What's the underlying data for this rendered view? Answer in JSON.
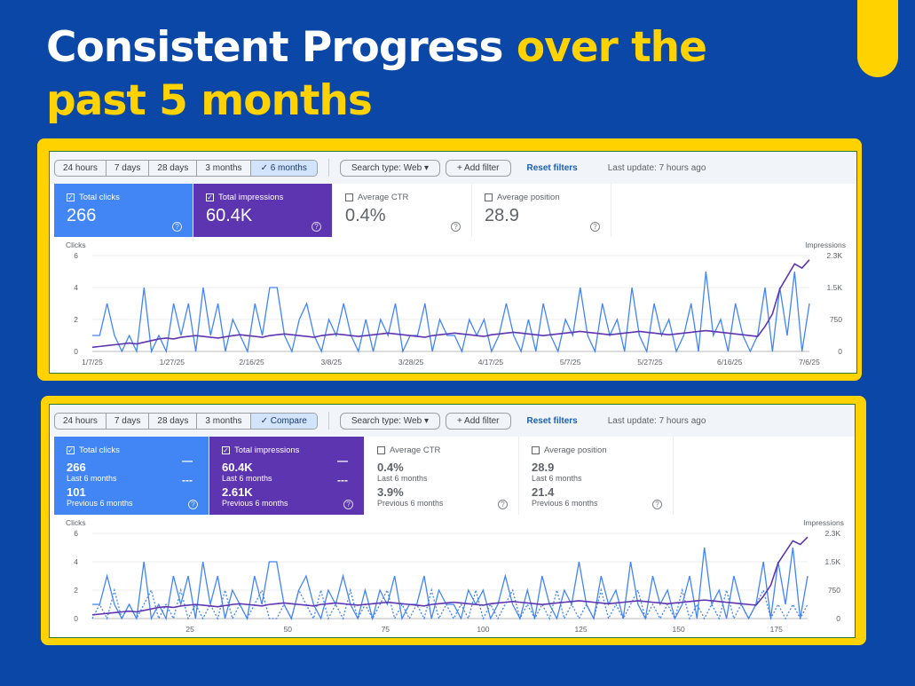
{
  "slide": {
    "title_white": "Consistent Progress ",
    "title_yellow_1": "over the",
    "title_yellow_2": "past 5 months"
  },
  "colors": {
    "background": "#0a47a6",
    "accent": "#ffd200",
    "clicks": "#4285f4",
    "impressions": "#5e35b1"
  },
  "panel1": {
    "ranges": [
      "24 hours",
      "7 days",
      "28 days",
      "3 months",
      "✓ 6 months"
    ],
    "search_type": "Search type: Web ▾",
    "add_filter": "+ Add filter",
    "reset": "Reset filters",
    "last_update": "Last update: 7 hours ago",
    "cards": [
      {
        "label": "Total clicks",
        "value": "266",
        "checked": true
      },
      {
        "label": "Total impressions",
        "value": "60.4K",
        "checked": true
      },
      {
        "label": "Average CTR",
        "value": "0.4%",
        "checked": false
      },
      {
        "label": "Average position",
        "value": "28.9",
        "checked": false
      }
    ]
  },
  "panel2": {
    "ranges": [
      "24 hours",
      "7 days",
      "28 days",
      "3 months",
      "✓ Compare"
    ],
    "search_type": "Search type: Web ▾",
    "add_filter": "+ Add filter",
    "reset": "Reset filters",
    "last_update": "Last update: 7 hours ago",
    "cards": [
      {
        "label": "Total clicks",
        "value": "266",
        "period": "Last 6 months",
        "prev_value": "101",
        "prev_period": "Previous 6 months"
      },
      {
        "label": "Total impressions",
        "value": "60.4K",
        "period": "Last 6 months",
        "prev_value": "2.61K",
        "prev_period": "Previous 6 months"
      },
      {
        "label": "Average CTR",
        "value": "0.4%",
        "period": "Last 6 months",
        "prev_value": "3.9%",
        "prev_period": "Previous 6 months"
      },
      {
        "label": "Average position",
        "value": "28.9",
        "period": "Last 6 months",
        "prev_value": "21.4",
        "prev_period": "Previous 6 months"
      }
    ]
  },
  "chart_data": [
    {
      "type": "line",
      "ylabel": "Clicks",
      "y2label": "Impressions",
      "ylim": [
        0,
        6
      ],
      "y2lim": [
        0,
        2300
      ],
      "yticks": [
        "0",
        "2",
        "4",
        "6"
      ],
      "y2ticks": [
        "0",
        "750",
        "1.5K",
        "2.3K"
      ],
      "xticks": [
        "1/7/25",
        "1/27/25",
        "2/16/25",
        "3/8/25",
        "3/28/25",
        "4/17/25",
        "5/7/25",
        "5/27/25",
        "6/16/25",
        "7/6/25"
      ],
      "series": [
        {
          "name": "Clicks",
          "values": [
            1,
            1,
            3,
            1,
            0,
            1,
            0,
            4,
            0,
            1,
            0,
            3,
            1,
            3,
            0,
            4,
            1,
            3,
            0,
            2,
            1,
            0,
            3,
            1,
            4,
            4,
            1,
            0,
            2,
            3,
            1,
            0,
            2,
            1,
            3,
            1,
            0,
            2,
            0,
            2,
            1,
            3,
            0,
            1,
            1,
            3,
            0,
            2,
            1,
            1,
            0,
            2,
            1,
            2,
            0,
            1,
            3,
            1,
            0,
            2,
            0,
            3,
            1,
            0,
            2,
            1,
            4,
            1,
            0,
            3,
            1,
            2,
            0,
            4,
            1,
            0,
            3,
            1,
            2,
            0,
            1,
            3,
            0,
            5,
            1,
            2,
            0,
            3,
            1,
            0,
            1,
            4,
            0,
            4,
            1,
            5,
            0,
            3
          ]
        },
        {
          "name": "Impressions",
          "values": [
            100,
            120,
            140,
            160,
            180,
            200,
            180,
            220,
            260,
            300,
            320,
            300,
            340,
            360,
            380,
            360,
            340,
            320,
            350,
            380,
            400,
            380,
            360,
            340,
            380,
            400,
            420,
            400,
            380,
            360,
            340,
            380,
            400,
            420,
            400,
            380,
            360,
            380,
            400,
            420,
            440,
            420,
            400,
            380,
            360,
            340,
            380,
            400,
            420,
            440,
            420,
            400,
            380,
            360,
            400,
            420,
            440,
            460,
            440,
            420,
            400,
            380,
            400,
            420,
            440,
            460,
            480,
            460,
            440,
            420,
            400,
            420,
            440,
            460,
            480,
            460,
            440,
            420,
            400,
            420,
            440,
            460,
            480,
            500,
            480,
            460,
            440,
            420,
            400,
            380,
            360,
            600,
            900,
            1500,
            1800,
            2100,
            2000,
            2200
          ]
        }
      ]
    },
    {
      "type": "line",
      "ylabel": "Clicks",
      "y2label": "Impressions",
      "ylim": [
        0,
        6
      ],
      "y2lim": [
        0,
        2300
      ],
      "yticks": [
        "0",
        "2",
        "4",
        "6"
      ],
      "y2ticks": [
        "0",
        "750",
        "1.5K",
        "2.3K"
      ],
      "xticks": [
        "25",
        "50",
        "75",
        "100",
        "125",
        "150",
        "175"
      ],
      "series": [
        {
          "name": "Clicks (last 6 months)",
          "values": [
            1,
            1,
            3,
            1,
            0,
            1,
            0,
            4,
            0,
            1,
            0,
            3,
            1,
            3,
            0,
            4,
            1,
            3,
            0,
            2,
            1,
            0,
            3,
            1,
            4,
            4,
            1,
            0,
            2,
            3,
            1,
            0,
            2,
            1,
            3,
            1,
            0,
            2,
            0,
            2,
            1,
            3,
            0,
            1,
            1,
            3,
            0,
            2,
            1,
            1,
            0,
            2,
            1,
            2,
            0,
            1,
            3,
            1,
            0,
            2,
            0,
            3,
            1,
            0,
            2,
            1,
            4,
            1,
            0,
            3,
            1,
            2,
            0,
            4,
            1,
            0,
            3,
            1,
            2,
            0,
            1,
            3,
            0,
            5,
            1,
            2,
            0,
            3,
            1,
            0,
            1,
            4,
            0,
            4,
            1,
            5,
            0,
            3
          ]
        },
        {
          "name": "Clicks (previous 6 months)",
          "values": [
            0,
            1,
            0,
            2,
            0,
            1,
            0,
            1,
            2,
            0,
            1,
            0,
            2,
            0,
            1,
            0,
            1,
            0,
            2,
            0,
            1,
            0,
            1,
            2,
            0,
            0,
            1,
            0,
            2,
            1,
            0,
            2,
            0,
            1,
            0,
            2,
            0,
            1,
            0,
            1,
            2,
            0,
            1,
            0,
            1,
            0,
            2,
            0,
            1,
            0,
            1,
            0,
            2,
            0,
            1,
            0,
            1,
            2,
            0,
            1,
            0,
            1,
            0,
            2,
            0,
            1,
            0,
            1,
            0,
            2,
            0,
            1,
            0,
            1,
            2,
            0,
            1,
            0,
            1,
            0,
            2,
            0,
            1,
            0,
            1,
            0,
            2,
            0,
            1,
            0,
            1,
            2,
            0,
            1,
            0,
            1,
            0,
            1
          ]
        },
        {
          "name": "Impressions",
          "values": [
            100,
            120,
            140,
            160,
            180,
            200,
            180,
            220,
            260,
            300,
            320,
            300,
            340,
            360,
            380,
            360,
            340,
            320,
            350,
            380,
            400,
            380,
            360,
            340,
            380,
            400,
            420,
            400,
            380,
            360,
            340,
            380,
            400,
            420,
            400,
            380,
            360,
            380,
            400,
            420,
            440,
            420,
            400,
            380,
            360,
            340,
            380,
            400,
            420,
            440,
            420,
            400,
            380,
            360,
            400,
            420,
            440,
            460,
            440,
            420,
            400,
            380,
            400,
            420,
            440,
            460,
            480,
            460,
            440,
            420,
            400,
            420,
            440,
            460,
            480,
            460,
            440,
            420,
            400,
            420,
            440,
            460,
            480,
            500,
            480,
            460,
            440,
            420,
            400,
            380,
            360,
            600,
            900,
            1500,
            1800,
            2100,
            2000,
            2200
          ]
        }
      ]
    }
  ]
}
